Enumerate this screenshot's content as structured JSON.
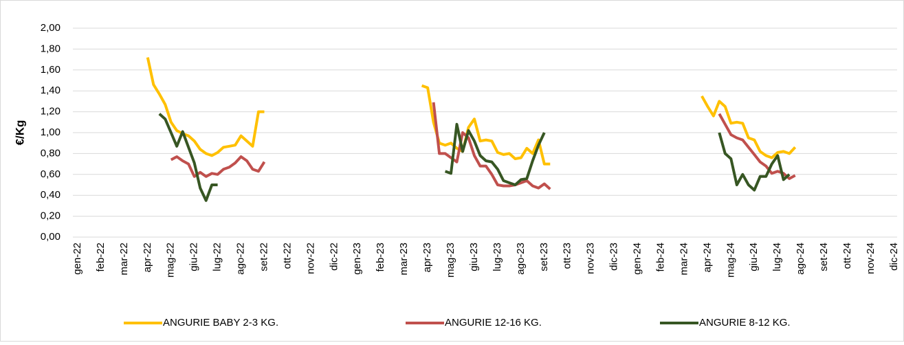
{
  "chart_data": {
    "type": "line",
    "y_label": "€/Kg",
    "ylim": [
      0,
      2
    ],
    "yticks": [
      {
        "value": 0,
        "label": "0,00"
      },
      {
        "value": 0.2,
        "label": "0,20"
      },
      {
        "value": 0.4,
        "label": "0,40"
      },
      {
        "value": 0.6,
        "label": "0,60"
      },
      {
        "value": 0.8,
        "label": "0,80"
      },
      {
        "value": 1,
        "label": "1,00"
      },
      {
        "value": 1.2,
        "label": "1,20"
      },
      {
        "value": 1.4,
        "label": "1,40"
      },
      {
        "value": 1.6,
        "label": "1,60"
      },
      {
        "value": 1.8,
        "label": "1,80"
      },
      {
        "value": 2,
        "label": "2,00"
      }
    ],
    "grid": true,
    "legend": "bottom",
    "categories": [
      "gen-22",
      null,
      null,
      null,
      "feb-22",
      null,
      null,
      null,
      "mar-22",
      null,
      null,
      null,
      "apr-22",
      null,
      null,
      null,
      "mag-22",
      null,
      null,
      null,
      "giu-22",
      null,
      null,
      null,
      "lug-22",
      null,
      null,
      null,
      "ago-22",
      null,
      null,
      null,
      "set-22",
      null,
      null,
      null,
      "ott-22",
      null,
      null,
      null,
      "nov-22",
      null,
      null,
      null,
      "dic-22",
      null,
      null,
      null,
      "gen-23",
      null,
      null,
      null,
      "feb-23",
      null,
      null,
      null,
      "mar-23",
      null,
      null,
      null,
      "apr-23",
      null,
      null,
      null,
      "mag-23",
      null,
      null,
      null,
      "giu-23",
      null,
      null,
      null,
      "lug-23",
      null,
      null,
      null,
      "ago-23",
      null,
      null,
      null,
      "set-23",
      null,
      null,
      null,
      "ott-23",
      null,
      null,
      null,
      "nov-23",
      null,
      null,
      null,
      "dic-23",
      null,
      null,
      null,
      "gen-24",
      null,
      null,
      null,
      "feb-24",
      null,
      null,
      null,
      "mar-24",
      null,
      null,
      null,
      "apr-24",
      null,
      null,
      null,
      "mag-24",
      null,
      null,
      null,
      "giu-24",
      null,
      null,
      null,
      "lug-24",
      null,
      null,
      null,
      "ago-24",
      null,
      null,
      null,
      "set-24",
      null,
      null,
      null,
      "ott-24",
      null,
      null,
      null,
      "nov-24",
      null,
      null,
      null,
      "dic-24",
      null,
      null,
      null
    ],
    "series": [
      {
        "name": "ANGURIE BABY 2-3 KG.",
        "color": "#ffc000",
        "values": [
          null,
          null,
          null,
          null,
          null,
          null,
          null,
          null,
          null,
          null,
          null,
          null,
          1.72,
          1.46,
          1.37,
          1.27,
          1.1,
          1.02,
          0.99,
          0.97,
          0.92,
          0.84,
          0.8,
          0.78,
          0.81,
          0.86,
          0.87,
          0.88,
          0.97,
          0.92,
          0.87,
          1.2,
          1.2,
          null,
          null,
          null,
          null,
          null,
          null,
          null,
          null,
          null,
          null,
          null,
          null,
          null,
          null,
          null,
          null,
          null,
          null,
          null,
          null,
          null,
          null,
          null,
          null,
          null,
          null,
          1.45,
          1.43,
          1.1,
          0.9,
          0.88,
          0.9,
          0.85,
          0.82,
          1.05,
          1.13,
          0.92,
          0.93,
          0.92,
          0.81,
          0.79,
          0.8,
          0.75,
          0.76,
          0.85,
          0.8,
          0.93,
          0.7,
          0.7,
          null,
          null,
          null,
          null,
          null,
          null,
          null,
          null,
          null,
          null,
          null,
          null,
          null,
          null,
          null,
          null,
          null,
          null,
          null,
          null,
          null,
          null,
          null,
          null,
          null,
          1.35,
          1.25,
          1.16,
          1.3,
          1.25,
          1.09,
          1.1,
          1.09,
          0.95,
          0.93,
          0.82,
          0.78,
          0.76,
          0.81,
          0.82,
          0.8,
          0.86,
          null,
          null,
          null,
          null,
          null,
          null,
          null,
          null,
          null,
          null,
          null,
          null,
          null,
          null,
          null,
          null,
          null,
          null,
          null,
          null
        ]
      },
      {
        "name": "ANGURIE 12-16 KG.",
        "color": "#c0504d",
        "values": [
          null,
          null,
          null,
          null,
          null,
          null,
          null,
          null,
          null,
          null,
          null,
          null,
          null,
          null,
          null,
          null,
          0.74,
          0.77,
          0.73,
          0.7,
          0.58,
          0.62,
          0.58,
          0.61,
          0.6,
          0.65,
          0.67,
          0.71,
          0.77,
          0.73,
          0.65,
          0.63,
          0.72,
          null,
          null,
          null,
          null,
          null,
          null,
          null,
          null,
          null,
          null,
          null,
          null,
          null,
          null,
          null,
          null,
          null,
          null,
          null,
          null,
          null,
          null,
          null,
          null,
          null,
          null,
          null,
          null,
          1.29,
          0.8,
          0.8,
          0.76,
          0.72,
          1.0,
          0.95,
          0.78,
          0.68,
          0.68,
          0.6,
          0.5,
          0.49,
          0.49,
          0.5,
          0.52,
          0.54,
          0.49,
          0.47,
          0.51,
          0.46,
          null,
          null,
          null,
          null,
          null,
          null,
          null,
          null,
          null,
          null,
          null,
          null,
          null,
          null,
          null,
          null,
          null,
          null,
          null,
          null,
          null,
          null,
          null,
          null,
          null,
          null,
          null,
          null,
          1.18,
          1.08,
          0.98,
          0.95,
          0.93,
          0.86,
          0.79,
          0.72,
          0.68,
          0.61,
          0.63,
          0.61,
          0.56,
          0.59,
          null,
          null,
          null,
          null,
          null,
          null,
          null,
          null,
          null,
          null,
          null,
          null,
          null,
          null,
          null,
          null,
          null,
          null,
          null,
          null
        ]
      },
      {
        "name": "ANGURIE 8-12 KG.",
        "color": "#375623",
        "values": [
          null,
          null,
          null,
          null,
          null,
          null,
          null,
          null,
          null,
          null,
          null,
          null,
          null,
          null,
          1.18,
          1.13,
          1.0,
          0.87,
          1.01,
          0.86,
          0.71,
          0.47,
          0.35,
          0.5,
          0.5,
          null,
          null,
          null,
          null,
          null,
          null,
          null,
          null,
          null,
          null,
          null,
          null,
          null,
          null,
          null,
          null,
          null,
          null,
          null,
          null,
          null,
          null,
          null,
          null,
          null,
          null,
          null,
          null,
          null,
          null,
          null,
          null,
          null,
          null,
          null,
          null,
          null,
          null,
          0.63,
          0.61,
          1.08,
          0.82,
          1.02,
          0.92,
          0.78,
          0.73,
          0.72,
          0.65,
          0.54,
          0.52,
          0.5,
          0.55,
          0.56,
          0.73,
          0.88,
          1.0,
          null,
          null,
          null,
          null,
          null,
          null,
          null,
          null,
          null,
          null,
          null,
          null,
          null,
          null,
          null,
          null,
          null,
          null,
          null,
          null,
          null,
          null,
          null,
          null,
          null,
          null,
          null,
          null,
          null,
          1.0,
          0.8,
          0.75,
          0.5,
          0.6,
          0.5,
          0.45,
          0.58,
          0.58,
          0.7,
          0.78,
          0.55,
          0.6,
          null,
          null,
          null,
          null,
          null,
          null,
          null,
          null,
          null,
          null,
          null,
          null,
          null,
          null,
          null,
          null,
          null,
          null,
          null,
          null,
          null
        ]
      }
    ]
  }
}
